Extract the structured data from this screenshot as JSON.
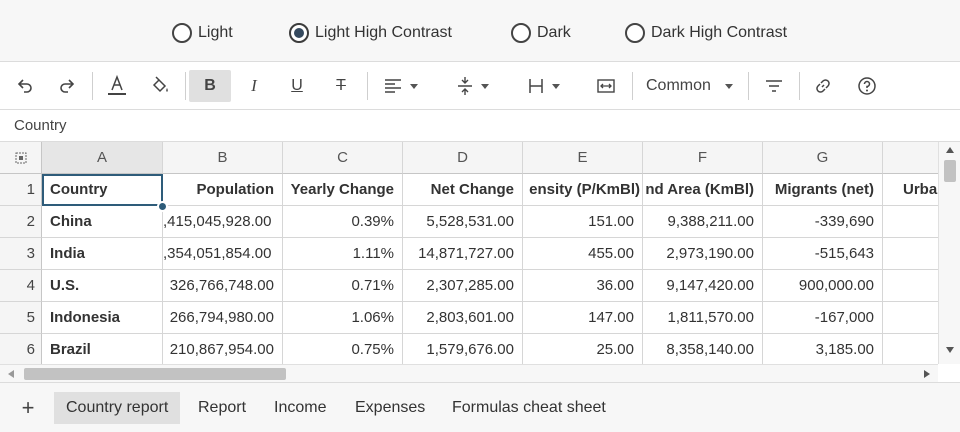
{
  "themes": [
    {
      "label": "Light",
      "checked": false
    },
    {
      "label": "Light High Contrast",
      "checked": true
    },
    {
      "label": "Dark",
      "checked": false
    },
    {
      "label": "Dark High Contrast",
      "checked": false
    }
  ],
  "toolbar": {
    "font_style_select": "Common"
  },
  "formula_bar": {
    "value": "Country"
  },
  "columns": [
    "A",
    "B",
    "C",
    "D",
    "E",
    "F",
    "G"
  ],
  "rows": [
    {
      "num": "1",
      "cells": [
        "Country",
        "Population",
        "Yearly Change",
        "Net Change",
        "ensity (P/KmBl)",
        "nd Area (KmBl)",
        "Migrants (net)",
        "Urba"
      ]
    },
    {
      "num": "2",
      "cells": [
        "China",
        ",415,045,928.00",
        "0.39%",
        "5,528,531.00",
        "151.00",
        "9,388,211.00",
        "-339,690",
        ""
      ]
    },
    {
      "num": "3",
      "cells": [
        "India",
        ",354,051,854.00",
        "1.11%",
        "14,871,727.00",
        "455.00",
        "2,973,190.00",
        "-515,643",
        ""
      ]
    },
    {
      "num": "4",
      "cells": [
        "U.S.",
        "326,766,748.00",
        "0.71%",
        "2,307,285.00",
        "36.00",
        "9,147,420.00",
        "900,000.00",
        ""
      ]
    },
    {
      "num": "5",
      "cells": [
        "Indonesia",
        "266,794,980.00",
        "1.06%",
        "2,803,601.00",
        "147.00",
        "1,811,570.00",
        "-167,000",
        ""
      ]
    },
    {
      "num": "6",
      "cells": [
        "Brazil",
        "210,867,954.00",
        "0.75%",
        "1,579,676.00",
        "25.00",
        "8,358,140.00",
        "3,185.00",
        ""
      ]
    }
  ],
  "sheets": [
    {
      "label": "Country report",
      "active": true
    },
    {
      "label": "Report",
      "active": false
    },
    {
      "label": "Income",
      "active": false
    },
    {
      "label": "Expenses",
      "active": false
    },
    {
      "label": "Formulas cheat sheet",
      "active": false
    }
  ],
  "add_sheet_label": "+",
  "colors": {
    "selection": "#2e5c7a",
    "radio_dot": "#35495e",
    "active_bg": "#e0e0e0"
  }
}
